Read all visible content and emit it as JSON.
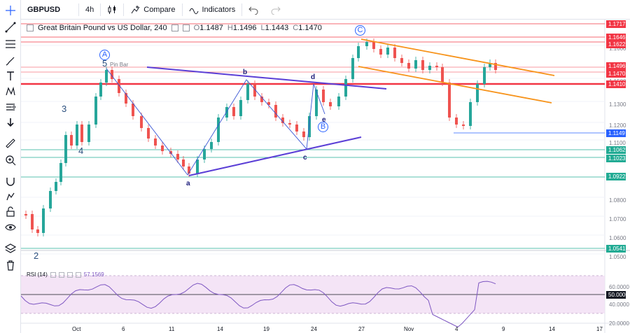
{
  "toolbar": {
    "symbol": "GBPUSD",
    "interval": "4h",
    "compare_label": "Compare",
    "indicators_label": "Indicators"
  },
  "legend": {
    "title": "Great Britain Pound vs US Dollar, 240",
    "open_key": "O",
    "open": "1.1487",
    "high_key": "H",
    "high": "1.1496",
    "low_key": "L",
    "low": "1.1443",
    "close_key": "C",
    "close": "1.1470"
  },
  "rsi": {
    "label": "RSI (14)",
    "value": "57.1569"
  },
  "price_axis": {
    "ticks": [
      "1.1600",
      "1.1500",
      "1.1300",
      "1.1200",
      "1.1100",
      "1.0800",
      "1.0700",
      "1.0600",
      "1.0500"
    ],
    "tags": [
      {
        "text": "1.1717",
        "color": "#f23645"
      },
      {
        "text": "1.1646",
        "color": "#f23645"
      },
      {
        "text": "1.1622",
        "color": "#f23645"
      },
      {
        "text": "1.1496",
        "color": "#f23645"
      },
      {
        "text": "1.1470",
        "color": "#f23645"
      },
      {
        "text": "1.1410",
        "color": "#f23645"
      },
      {
        "text": "1.1149",
        "color": "#2962ff"
      },
      {
        "text": "1.1062",
        "color": "#22ab94"
      },
      {
        "text": "1.1023",
        "color": "#22ab94"
      },
      {
        "text": "1.0922",
        "color": "#22ab94"
      },
      {
        "text": "1.0541",
        "color": "#22ab94"
      }
    ]
  },
  "rsi_axis": {
    "ticks": [
      "60.0000",
      "40.0000",
      "20.0000"
    ],
    "tag": "50.0000"
  },
  "time_axis": [
    "Oct",
    "6",
    "11",
    "14",
    "19",
    "24",
    "27",
    "Nov",
    "4",
    "9",
    "14",
    "17"
  ],
  "waves": {
    "w1": "2",
    "w2": "3",
    "w3": "4",
    "w4": "5",
    "circA": "A",
    "circB": "B",
    "circC": "C",
    "pin_bar": "Pin Bar",
    "a": "a",
    "b": "b",
    "c": "c",
    "d": "d",
    "e": "e"
  },
  "colors": {
    "up": "#26a69a",
    "down": "#ef5350",
    "resistance": "#f23645",
    "support": "#22ab94",
    "triangle": "#5b3fd6",
    "channel": "#f7931a",
    "rsi": "#7e57c2"
  }
}
